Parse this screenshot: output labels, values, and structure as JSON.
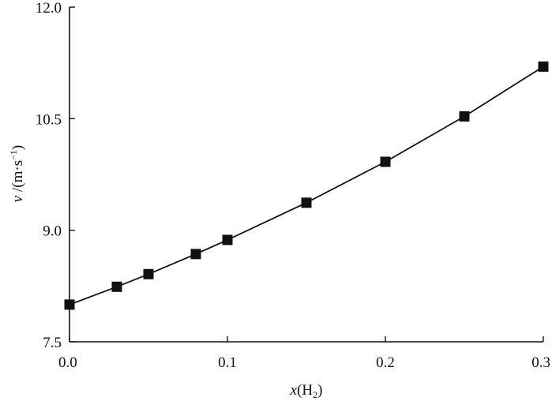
{
  "chart_data": {
    "type": "line",
    "title": "",
    "xlabel": {
      "base": "x",
      "paren_open": "(",
      "species": "H",
      "subscript": "2",
      "paren_close": ")"
    },
    "ylabel": {
      "base": "v",
      "unit_open": " /(m·s",
      "exponent": "−1",
      "unit_close": ")"
    },
    "xlim": [
      0.0,
      0.3
    ],
    "ylim": [
      7.5,
      12.0
    ],
    "xticks": [
      {
        "value": 0.0,
        "label": "0.0"
      },
      {
        "value": 0.1,
        "label": "0.1"
      },
      {
        "value": 0.2,
        "label": "0.2"
      },
      {
        "value": 0.3,
        "label": "0.3"
      }
    ],
    "yticks": [
      {
        "value": 7.5,
        "label": "7.5"
      },
      {
        "value": 9.0,
        "label": "9.0"
      },
      {
        "value": 10.5,
        "label": "10.5"
      },
      {
        "value": 12.0,
        "label": "12.0"
      }
    ],
    "grid": false,
    "legend": "none",
    "series": [
      {
        "marker": "square",
        "color": "#111111",
        "x": [
          0.0,
          0.03,
          0.05,
          0.08,
          0.1,
          0.15,
          0.2,
          0.25,
          0.3
        ],
        "y": [
          8.0,
          8.24,
          8.41,
          8.68,
          8.87,
          9.37,
          9.92,
          10.53,
          11.2
        ]
      }
    ]
  }
}
